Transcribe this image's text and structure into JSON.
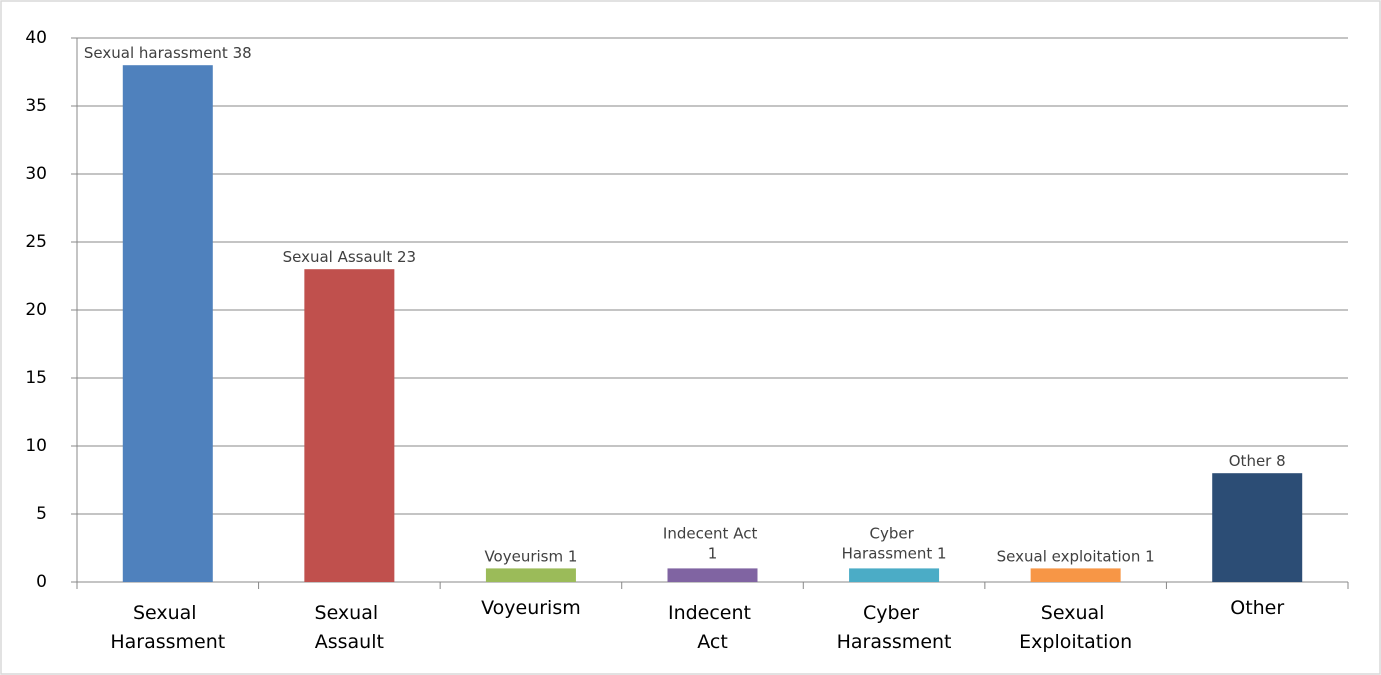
{
  "chart_data": {
    "type": "bar",
    "categories": [
      "Sexual Harassment",
      "Sexual Assault",
      "Voyeurism",
      "Indecent Act",
      "Cyber Harassment",
      "Sexual Exploitation",
      "Other"
    ],
    "values": [
      38,
      23,
      1,
      1,
      1,
      1,
      8
    ],
    "value_labels": [
      "Sexual harassment 38",
      "Sexual Assault  23",
      "Voyeurism 1",
      "Indecent Act 1",
      "Cyber Harassment  1",
      "Sexual exploitation 1",
      "Other  8"
    ],
    "colors": [
      "#4f81bd",
      "#c0504d",
      "#9bbb59",
      "#8064a2",
      "#4bacc6",
      "#f79646",
      "#2c4d75"
    ],
    "ylim": [
      0,
      40
    ],
    "yticks": [
      0,
      5,
      10,
      15,
      20,
      25,
      30,
      35,
      40
    ],
    "grid": true
  }
}
